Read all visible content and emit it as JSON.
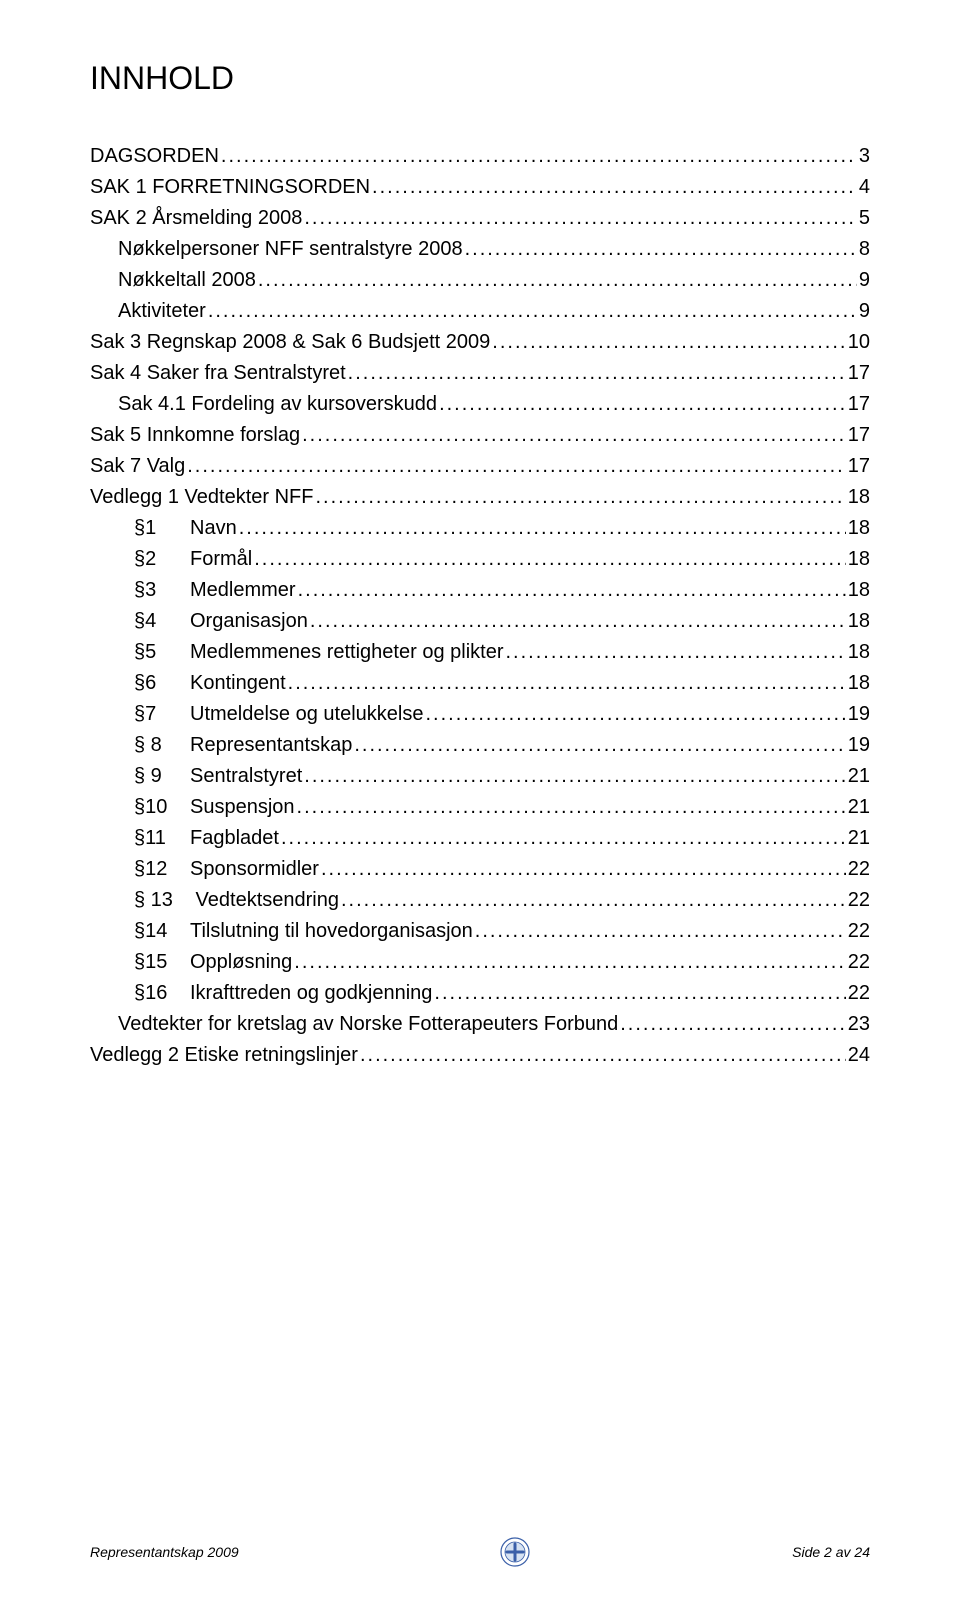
{
  "title": "INNHOLD",
  "toc": [
    {
      "level": 0,
      "label": "DAGSORDEN",
      "page": "3"
    },
    {
      "level": 0,
      "label": "SAK 1 FORRETNINGSORDEN",
      "page": "4"
    },
    {
      "level": 0,
      "label": "SAK 2  Årsmelding 2008",
      "page": "5"
    },
    {
      "level": 1,
      "label": "Nøkkelpersoner NFF sentralstyre 2008",
      "page": "8"
    },
    {
      "level": 1,
      "label": "Nøkkeltall 2008",
      "page": "9"
    },
    {
      "level": 1,
      "label": "Aktiviteter",
      "page": "9"
    },
    {
      "level": 0,
      "label": "Sak 3  Regnskap 2008 & Sak 6 Budsjett 2009",
      "page": "10"
    },
    {
      "level": 0,
      "label": "Sak 4 Saker fra Sentralstyret",
      "page": "17"
    },
    {
      "level": 1,
      "label": "Sak 4.1 Fordeling av kursoverskudd",
      "page": "17"
    },
    {
      "level": 0,
      "label": "Sak 5 Innkomne forslag",
      "page": "17"
    },
    {
      "level": 0,
      "label": "Sak 7 Valg",
      "page": "17"
    },
    {
      "level": 0,
      "label": "Vedlegg 1 Vedtekter NFF",
      "page": "18"
    },
    {
      "level": 2,
      "sect": "§1",
      "label": "Navn",
      "page": "18"
    },
    {
      "level": 2,
      "sect": "§2",
      "label": "Formål",
      "page": "18"
    },
    {
      "level": 2,
      "sect": "§3",
      "label": "Medlemmer",
      "page": "18"
    },
    {
      "level": 2,
      "sect": "§4",
      "label": "Organisasjon",
      "page": "18"
    },
    {
      "level": 2,
      "sect": "§5",
      "label": "Medlemmenes rettigheter og plikter",
      "page": "18"
    },
    {
      "level": 2,
      "sect": "§6",
      "label": "Kontingent",
      "page": "18"
    },
    {
      "level": 2,
      "sect": "§7",
      "label": "Utmeldelse og utelukkelse",
      "page": "19"
    },
    {
      "level": 2,
      "sect": "§ 8",
      "label": "Representantskap",
      "page": "19"
    },
    {
      "level": 2,
      "sect": "§ 9",
      "label": "Sentralstyret",
      "page": "21"
    },
    {
      "level": 2,
      "sect": "§10",
      "label": "Suspensjon",
      "page": "21"
    },
    {
      "level": 2,
      "sect": "§11",
      "label": "Fagbladet",
      "page": "21"
    },
    {
      "level": 2,
      "sect": "§12",
      "label": "Sponsormidler",
      "page": "22"
    },
    {
      "level": 2,
      "sect": "§ 13",
      "label": " Vedtektsendring",
      "page": "22"
    },
    {
      "level": 2,
      "sect": "§14",
      "label": "Tilslutning til hovedorganisasjon",
      "page": "22"
    },
    {
      "level": 2,
      "sect": "§15",
      "label": "Oppløsning",
      "page": "22"
    },
    {
      "level": 2,
      "sect": "§16",
      "label": "Ikrafttreden og godkjenning",
      "page": "22"
    },
    {
      "level": 1,
      "label": "Vedtekter for kretslag av Norske Fotterapeuters Forbund",
      "page": "23"
    },
    {
      "level": 0,
      "label": "Vedlegg 2 Etiske retningslinjer",
      "page": "24"
    }
  ],
  "footer": {
    "left": "Representantskap 2009",
    "right": "Side 2 av 24"
  },
  "colors": {
    "text": "#000000",
    "background": "#ffffff",
    "logo_outer": "#3a5fa8",
    "logo_inner": "#d6e2f2"
  },
  "typography": {
    "title_fontsize_pt": 24,
    "body_fontsize_pt": 15,
    "footer_fontsize_pt": 10,
    "font_family": "Arial"
  }
}
